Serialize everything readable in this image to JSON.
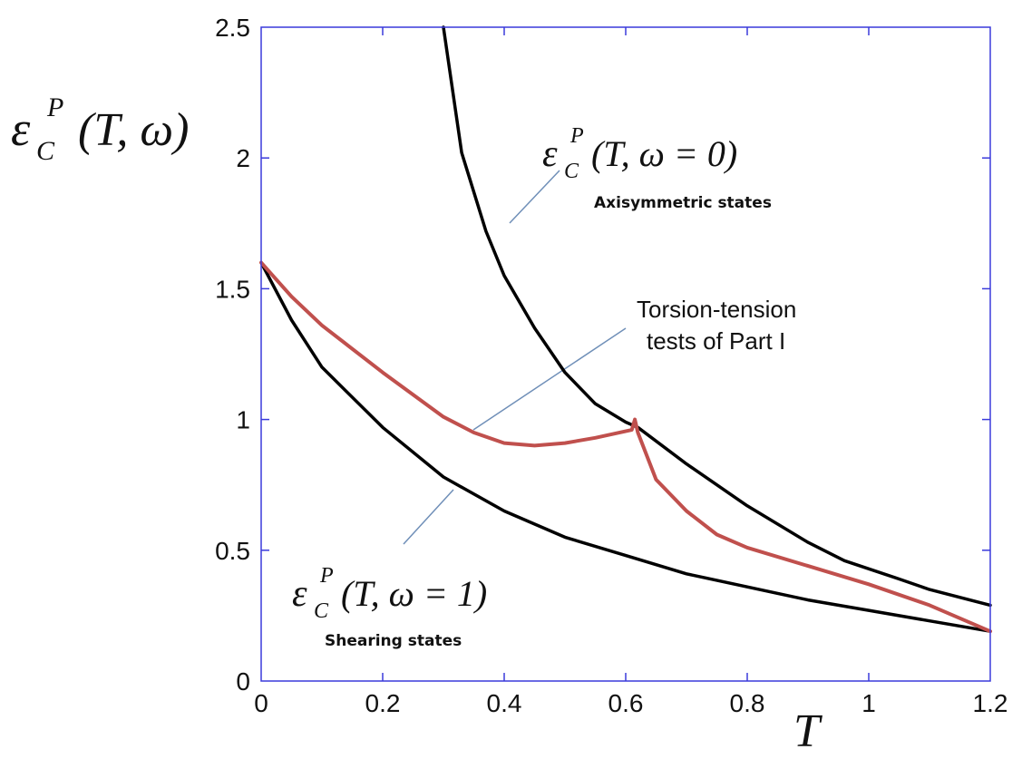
{
  "chart_data": {
    "type": "line",
    "xlabel": "T",
    "ylabel": "ε_C^P(T, ω)",
    "xlim": [
      0,
      1.2
    ],
    "ylim": [
      0,
      2.5
    ],
    "x_ticks": [
      "0",
      "0.2",
      "0.4",
      "0.6",
      "0.8",
      "1",
      "1.2"
    ],
    "y_ticks": [
      "0",
      "0.5",
      "1",
      "1.5",
      "2",
      "2.5"
    ],
    "grid": false,
    "colors": {
      "axes": "#3a3adb",
      "curve": "#000000",
      "path": "#c0504d",
      "leader": "#6f8fb8"
    },
    "series": [
      {
        "name": "ε_C^P(T, ω = 0)",
        "x": [
          0.3,
          0.33,
          0.37,
          0.4,
          0.45,
          0.5,
          0.55,
          0.6,
          0.62,
          0.7,
          0.8,
          0.9,
          0.96,
          1.05,
          1.1,
          1.2
        ],
        "y": [
          2.5,
          2.02,
          1.72,
          1.55,
          1.35,
          1.18,
          1.06,
          0.99,
          0.97,
          0.83,
          0.67,
          0.53,
          0.46,
          0.39,
          0.35,
          0.29
        ]
      },
      {
        "name": "ε_C^P(T, ω = 1)",
        "x": [
          0,
          0.05,
          0.1,
          0.2,
          0.3,
          0.4,
          0.5,
          0.6,
          0.7,
          0.8,
          0.9,
          1.0,
          1.1,
          1.2
        ],
        "y": [
          1.6,
          1.38,
          1.2,
          0.97,
          0.78,
          0.65,
          0.55,
          0.48,
          0.41,
          0.36,
          0.31,
          0.27,
          0.23,
          0.19
        ]
      },
      {
        "name": "Torsion-tension tests of Part I",
        "x": [
          0,
          0.05,
          0.1,
          0.2,
          0.3,
          0.35,
          0.4,
          0.45,
          0.5,
          0.55,
          0.61,
          0.615,
          0.62,
          0.65,
          0.7,
          0.75,
          0.8,
          0.9,
          1.0,
          1.1,
          1.2
        ],
        "y": [
          1.6,
          1.47,
          1.36,
          1.18,
          1.01,
          0.95,
          0.91,
          0.9,
          0.91,
          0.93,
          0.96,
          1.0,
          0.95,
          0.77,
          0.65,
          0.56,
          0.51,
          0.44,
          0.37,
          0.29,
          0.19
        ]
      }
    ],
    "annotations": {
      "axis_y_label": {
        "eps": "ε",
        "sup": "P",
        "sub": "C",
        "args": "(T, ω)"
      },
      "axis_x_label": "T",
      "curve0_label": {
        "eps": "ε",
        "sup": "P",
        "sub": "C",
        "args": "(T, ω = 0)",
        "caption": "Axisymmetric states"
      },
      "curve1_label": {
        "eps": "ε",
        "sup": "P",
        "sub": "C",
        "args": "(T, ω = 1)",
        "caption": "Shearing states"
      },
      "path_label": [
        "Torsion-tension",
        "tests of Part I"
      ]
    }
  }
}
